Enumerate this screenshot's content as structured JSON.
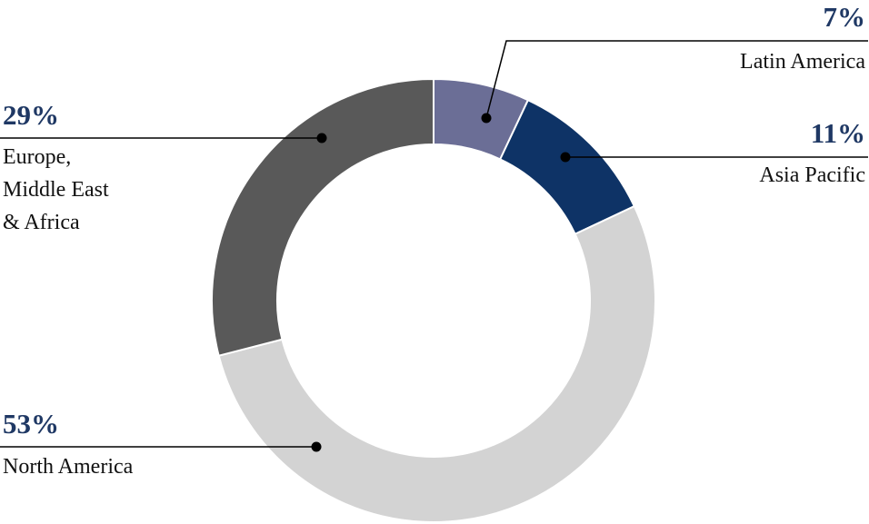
{
  "chart_data": {
    "type": "pie",
    "variant": "donut",
    "start": "top, clockwise",
    "slices": [
      {
        "label": "Latin America",
        "value": 7,
        "value_label": "7%",
        "color": "#6b6e96"
      },
      {
        "label": "Asia Pacific",
        "value": 11,
        "value_label": "11%",
        "color": "#0e3366"
      },
      {
        "label": "North America",
        "value": 53,
        "value_label": "53%",
        "color": "#d3d3d3"
      },
      {
        "label": "Europe, Middle East & Africa",
        "label_lines": [
          "Europe,",
          "Middle East",
          "& Africa"
        ],
        "value": 29,
        "value_label": "29%",
        "color": "#595959"
      }
    ],
    "value_label_color": "#1f3864"
  }
}
